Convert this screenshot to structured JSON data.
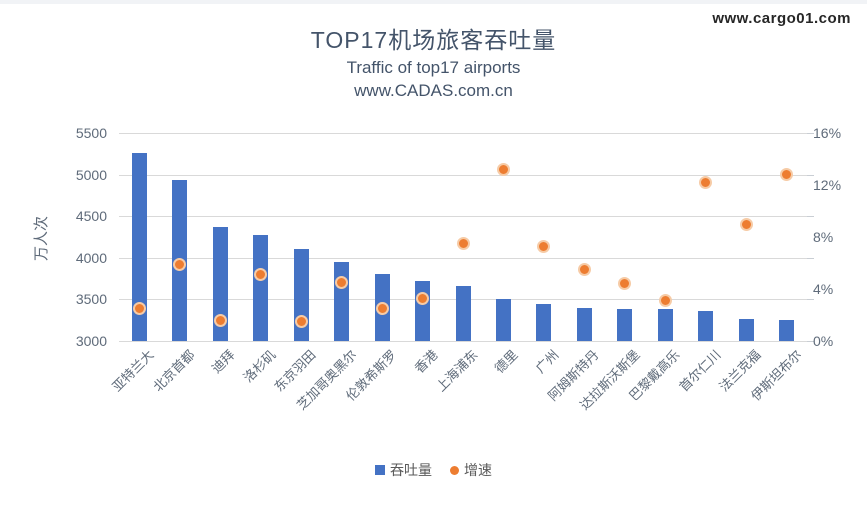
{
  "watermark": {
    "text": "www.cargo01.com"
  },
  "header": {
    "title": "TOP17机场旅客吞吐量",
    "subtitle_en": "Traffic of top17 airports",
    "subtitle_site": "www.CADAS.com.cn"
  },
  "chart_data": {
    "type": "combo",
    "title": "TOP17机场旅客吞吐量",
    "subtitle": "Traffic of top17 airports www.CADAS.com.cn",
    "categories": [
      "亚特兰大",
      "北京首都",
      "迪拜",
      "洛杉矶",
      "东京羽田",
      "芝加哥奥黑尔",
      "伦敦希斯罗",
      "香港",
      "上海浦东",
      "德里",
      "广州",
      "阿姆斯特丹",
      "达拉斯沃斯堡",
      "巴黎戴高乐",
      "首尔仁川",
      "法兰克福",
      "伊斯坦布尔"
    ],
    "series": [
      {
        "name": "吞吐量",
        "type": "bar",
        "axis": "left",
        "unit": "万人次",
        "color": "#4472C4",
        "values": [
          5260,
          4935,
          4370,
          4270,
          4100,
          3945,
          3810,
          3720,
          3660,
          3510,
          3440,
          3400,
          3390,
          3380,
          3365,
          3270,
          3250
        ]
      },
      {
        "name": "增速",
        "type": "scatter",
        "axis": "right",
        "unit": "%",
        "color": "#ED7D31",
        "values": [
          2.5,
          5.9,
          1.6,
          5.1,
          1.5,
          4.5,
          2.5,
          3.3,
          7.5,
          13.2,
          7.3,
          5.5,
          4.4,
          3.1,
          12.2,
          9.0,
          12.8
        ]
      }
    ],
    "left_axis": {
      "title": "万人次",
      "min": 3000,
      "max": 5500,
      "step": 500,
      "tick_labels": [
        "3000",
        "3500",
        "4000",
        "4500",
        "5000",
        "5500"
      ]
    },
    "right_axis": {
      "min": 0,
      "max": 16,
      "step": 4,
      "tick_labels": [
        "0%",
        "4%",
        "8%",
        "12%",
        "16%"
      ]
    },
    "grid": true,
    "legend_position": "bottom"
  },
  "legend": {
    "throughput_label": "吞吐量",
    "growth_label": "增速"
  },
  "colors": {
    "bar": "#4472C4",
    "marker": "#ED7D31",
    "marker_ring": "#F6CBA6",
    "gridline": "#D9D9D9",
    "axis_text": "#5F6B7A",
    "title_text": "#44546A",
    "watermark_text": "#262626"
  }
}
